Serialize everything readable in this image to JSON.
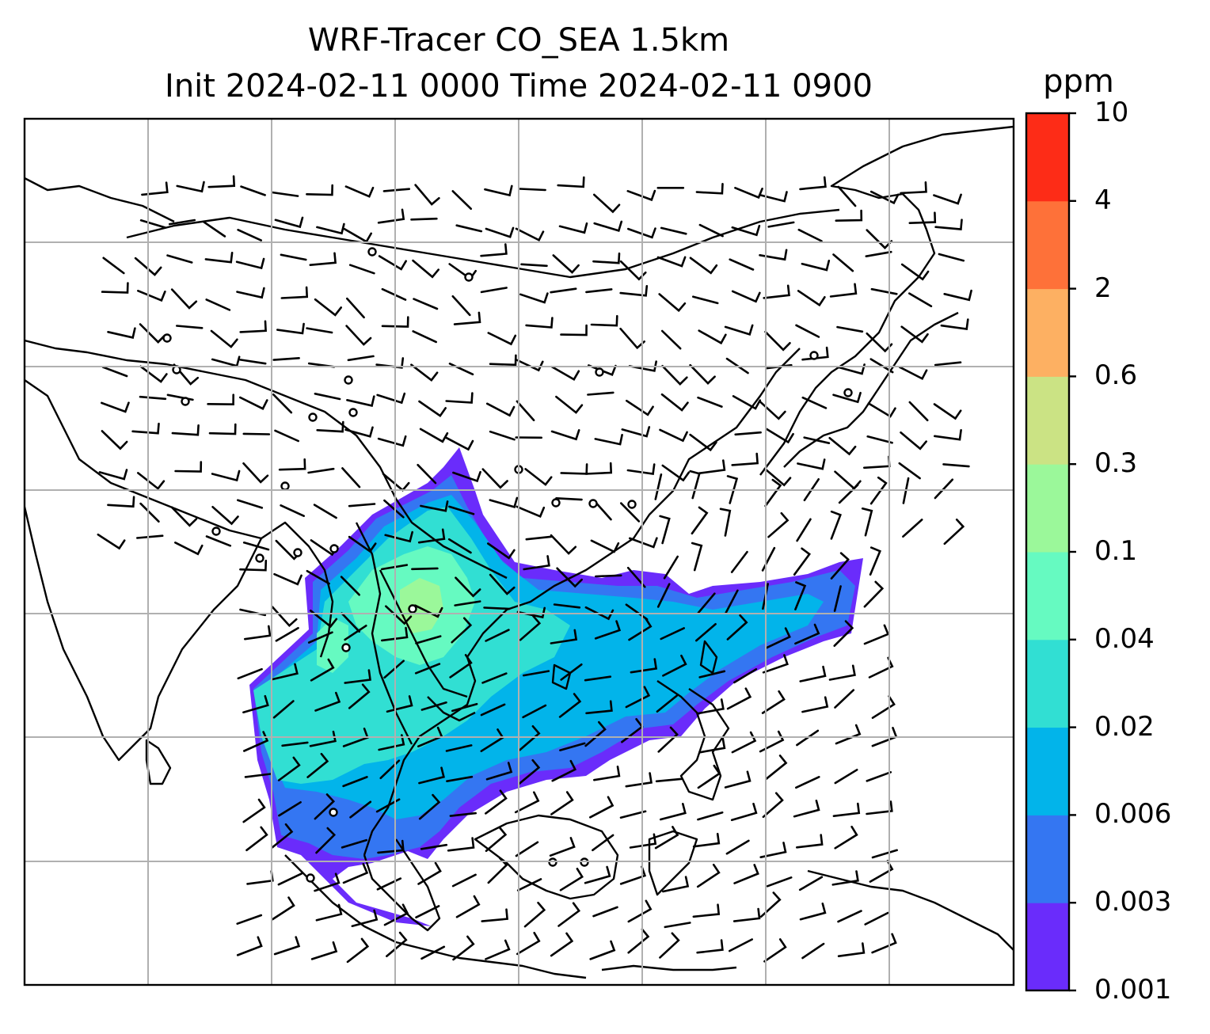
{
  "title": {
    "line1": "WRF-Tracer CO_SEA 1.5km",
    "line2": "Init 2024-02-11 0000 Time 2024-02-11 0900"
  },
  "colorbar": {
    "unit": "ppm",
    "levels": [
      "0.001",
      "0.003",
      "0.006",
      "0.02",
      "0.04",
      "0.1",
      "0.3",
      "0.6",
      "2",
      "4",
      "10"
    ],
    "colors": [
      "#6a2cfb",
      "#3476f2",
      "#02b4ea",
      "#31dfd3",
      "#66fac1",
      "#9bf89a",
      "#cbe384",
      "#fdb062",
      "#fe7139",
      "#fd2c17"
    ]
  },
  "map": {
    "region": "Southeast Asia",
    "tracer": "CO_SEA",
    "gridlines": true,
    "wind_barbs": true
  }
}
